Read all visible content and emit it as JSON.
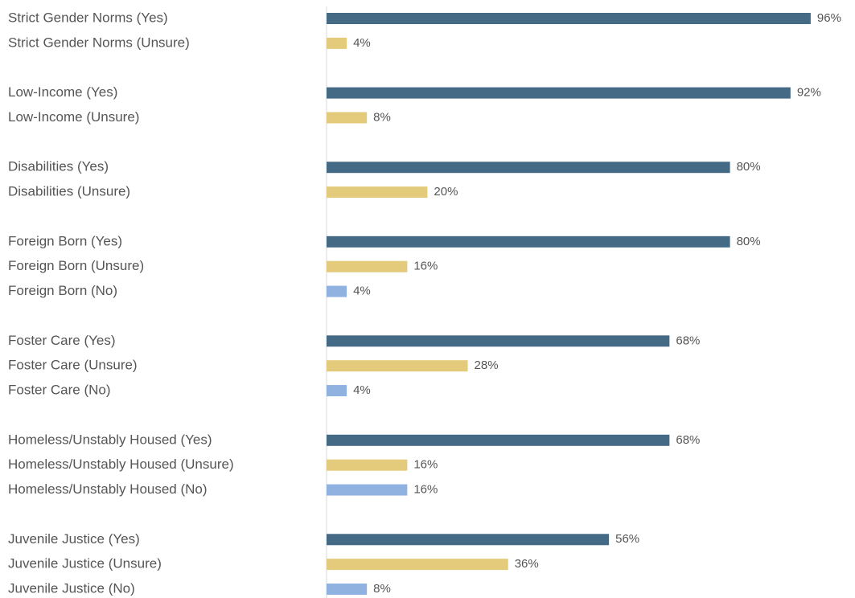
{
  "chart_data": {
    "type": "bar",
    "orientation": "horizontal",
    "categories": [
      "Strict Gender Norms (Yes)",
      "Strict Gender Norms (Unsure)",
      null,
      "Low-Income (Yes)",
      "Low-Income (Unsure)",
      null,
      "Disabilities (Yes)",
      "Disabilities (Unsure)",
      null,
      "Foreign Born (Yes)",
      "Foreign Born (Unsure)",
      "Foreign Born (No)",
      null,
      "Foster Care (Yes)",
      "Foster Care (Unsure)",
      "Foster Care (No)",
      null,
      "Homeless/Unstably Housed (Yes)",
      "Homeless/Unstably Housed (Unsure)",
      "Homeless/Unstably Housed (No)",
      null,
      "Juvenile Justice (Yes)",
      "Juvenile Justice (Unsure)",
      "Juvenile Justice (No)"
    ],
    "values": [
      96,
      4,
      null,
      92,
      8,
      null,
      80,
      20,
      null,
      80,
      16,
      4,
      null,
      68,
      28,
      4,
      null,
      68,
      16,
      16,
      null,
      56,
      36,
      8
    ],
    "value_labels": [
      "96%",
      "4%",
      null,
      "92%",
      "8%",
      null,
      "80%",
      "20%",
      null,
      "80%",
      "16%",
      "4%",
      null,
      "68%",
      "28%",
      "4%",
      null,
      "68%",
      "16%",
      "16%",
      null,
      "56%",
      "36%",
      "8%"
    ],
    "colors": [
      "#456a86",
      "#e3cb7b",
      null,
      "#456a86",
      "#e3cb7b",
      null,
      "#456a86",
      "#e3cb7b",
      null,
      "#456a86",
      "#e3cb7b",
      "#8fb2e0",
      null,
      "#456a86",
      "#e3cb7b",
      "#8fb2e0",
      null,
      "#456a86",
      "#e3cb7b",
      "#8fb2e0",
      null,
      "#456a86",
      "#e3cb7b",
      "#8fb2e0"
    ],
    "xlim": [
      0,
      100
    ]
  }
}
